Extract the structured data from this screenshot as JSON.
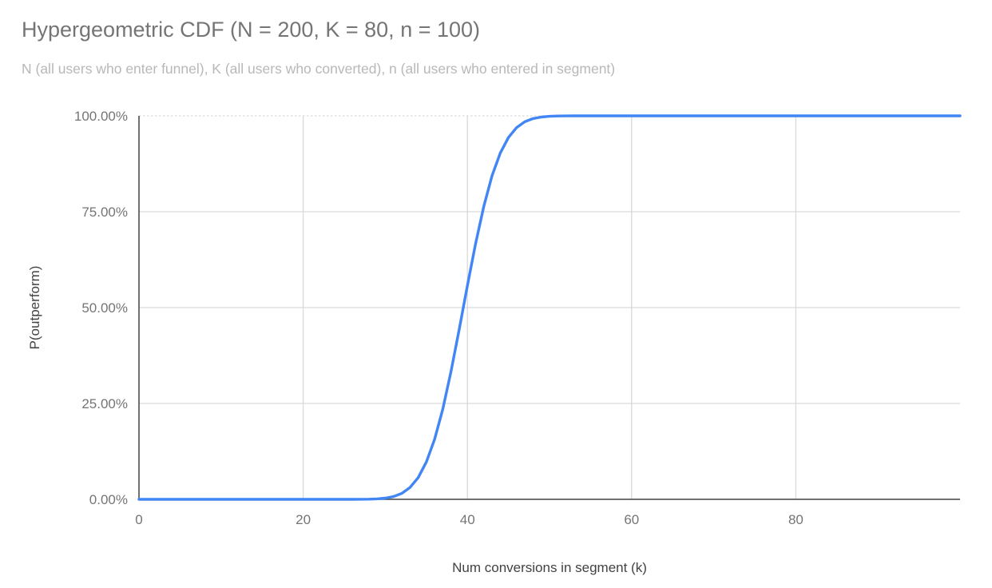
{
  "header": {
    "title": "Hypergeometric CDF (N = 200, K = 80, n = 100)",
    "subtitle": "N (all users who enter funnel), K (all users who converted), n (all users who entered in segment)"
  },
  "colors": {
    "line": "#4285f4",
    "grid": "#d9d9d9",
    "axis": "#424242",
    "title_text": "#757575",
    "subtitle_text": "#b8b8b8",
    "tick_text": "#757575",
    "axis_title_text": "#424242",
    "background": "#ffffff"
  },
  "chart_data": {
    "type": "line",
    "title": "Hypergeometric CDF (N = 200, K = 80, n = 100)",
    "subtitle": "N (all users who enter funnel), K (all users who converted), n (all users who entered in segment)",
    "xlabel": "Num conversions in segment (k)",
    "ylabel": "P(outperform)",
    "xlim": [
      0,
      100
    ],
    "ylim": [
      0,
      1
    ],
    "x_tick_values": [
      0,
      20,
      40,
      60,
      80
    ],
    "x_ticks": [
      "0",
      "20",
      "40",
      "60",
      "80"
    ],
    "y_tick_values": [
      0,
      0.25,
      0.5,
      0.75,
      1
    ],
    "y_ticks": [
      "0.00%",
      "25.00%",
      "50.00%",
      "75.00%",
      "100.00%"
    ],
    "grid": true,
    "legend": "none",
    "series": [
      {
        "name": "P(outperform)",
        "color": "#4285f4",
        "points": [
          [
            0,
            0
          ],
          [
            5,
            0
          ],
          [
            10,
            0
          ],
          [
            15,
            0
          ],
          [
            20,
            0
          ],
          [
            24,
            0
          ],
          [
            25,
            2e-05
          ],
          [
            26,
            0.0001
          ],
          [
            27,
            0.0002
          ],
          [
            28,
            0.0005
          ],
          [
            29,
            0.0013
          ],
          [
            30,
            0.0031
          ],
          [
            31,
            0.0071
          ],
          [
            32,
            0.0154
          ],
          [
            33,
            0.0307
          ],
          [
            34,
            0.0565
          ],
          [
            35,
            0.0973
          ],
          [
            36,
            0.1565
          ],
          [
            37,
            0.2354
          ],
          [
            38,
            0.3328
          ],
          [
            39,
            0.4428
          ],
          [
            40,
            0.5572
          ],
          [
            41,
            0.6672
          ],
          [
            42,
            0.7646
          ],
          [
            43,
            0.8435
          ],
          [
            44,
            0.9027
          ],
          [
            45,
            0.9435
          ],
          [
            46,
            0.9695
          ],
          [
            47,
            0.9847
          ],
          [
            48,
            0.9929
          ],
          [
            49,
            0.9969
          ],
          [
            50,
            0.9988
          ],
          [
            51,
            0.9995
          ],
          [
            52,
            0.9998
          ],
          [
            53,
            0.9999
          ],
          [
            54,
            1
          ],
          [
            55,
            1
          ],
          [
            60,
            1
          ],
          [
            70,
            1
          ],
          [
            80,
            1
          ],
          [
            90,
            1
          ],
          [
            100,
            1
          ]
        ]
      }
    ]
  }
}
